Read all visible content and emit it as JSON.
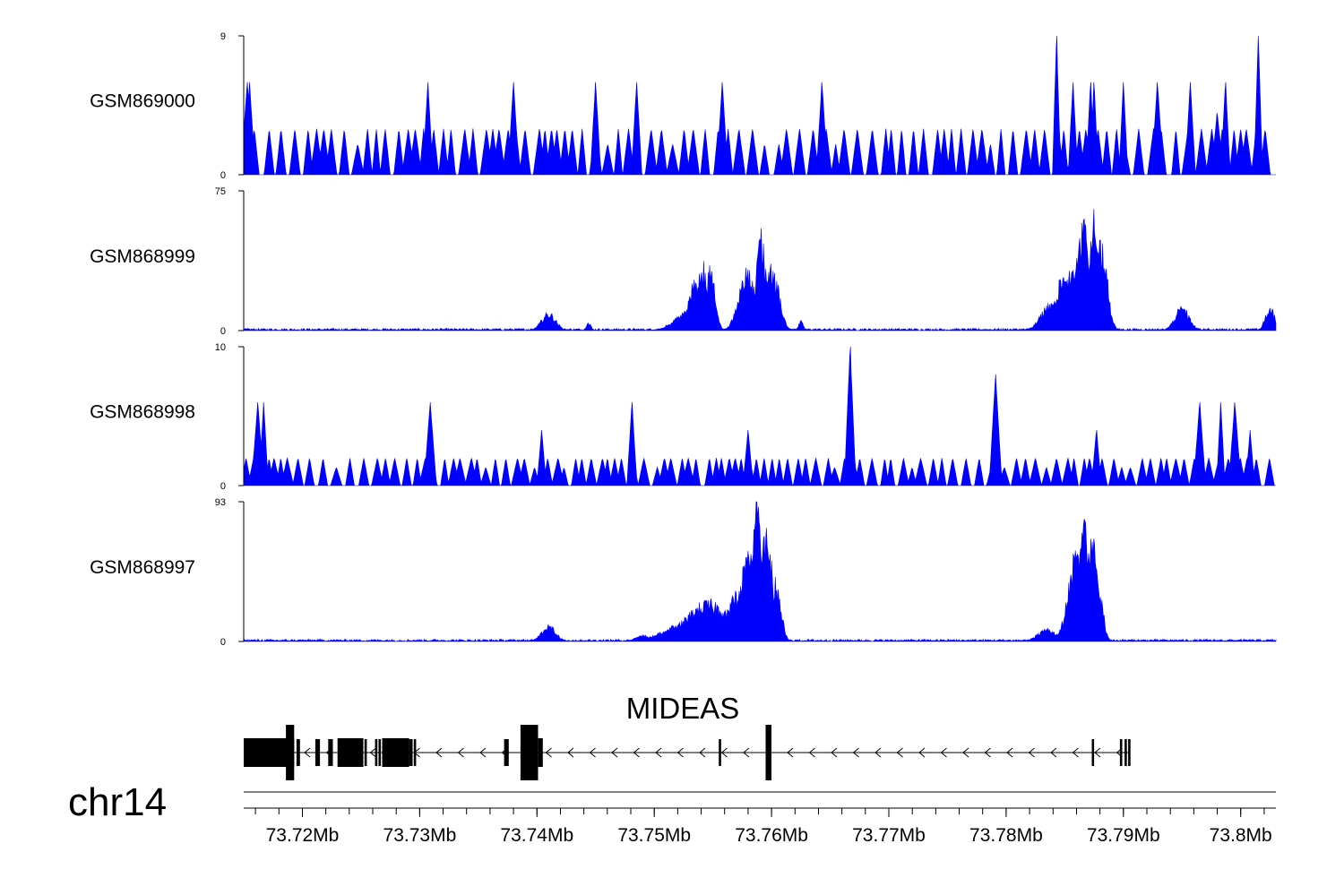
{
  "chart_data": {
    "type": "area",
    "title": "",
    "colors": {
      "signal": "#0000FF",
      "axis": "#000000",
      "gene": "#000000"
    },
    "xlim": [
      73.715,
      73.803
    ],
    "x_unit": "Mb",
    "x_ticks": [
      {
        "value": 73.72,
        "label": "73.72Mb"
      },
      {
        "value": 73.73,
        "label": "73.73Mb"
      },
      {
        "value": 73.74,
        "label": "73.74Mb"
      },
      {
        "value": 73.75,
        "label": "73.75Mb"
      },
      {
        "value": 73.76,
        "label": "73.76Mb"
      },
      {
        "value": 73.77,
        "label": "73.77Mb"
      },
      {
        "value": 73.78,
        "label": "73.78Mb"
      },
      {
        "value": 73.79,
        "label": "73.79Mb"
      },
      {
        "value": 73.8,
        "label": "73.8Mb"
      }
    ],
    "minor_tick_step": 0.002,
    "chromosome": "chr14",
    "tracks": [
      {
        "name": "GSM869000",
        "ymin_label": "0",
        "ymax_label": "9",
        "ylim": [
          0,
          9
        ],
        "style": "sparse",
        "base": 3,
        "spacing": 0.00075,
        "peaks": [
          [
            73.7153,
            6
          ],
          [
            73.7155,
            6
          ],
          [
            73.7307,
            6
          ],
          [
            73.738,
            6
          ],
          [
            73.745,
            6
          ],
          [
            73.7485,
            6
          ],
          [
            73.7558,
            6
          ],
          [
            73.7643,
            6
          ],
          [
            73.7857,
            6
          ],
          [
            73.7872,
            6
          ],
          [
            73.7875,
            6
          ],
          [
            73.79,
            6
          ],
          [
            73.7929,
            6
          ],
          [
            73.7957,
            6
          ],
          [
            73.7987,
            6
          ],
          [
            73.7843,
            9
          ],
          [
            73.8015,
            9
          ],
          [
            73.798,
            4
          ]
        ]
      },
      {
        "name": "GSM868999",
        "ymin_label": "0",
        "ymax_label": "75",
        "ylim": [
          0,
          75
        ],
        "style": "peaks",
        "noise": 1.2,
        "peaks": [
          [
            73.741,
            9,
            0.0006
          ],
          [
            73.7444,
            4,
            0.0002
          ],
          [
            73.753,
            10,
            0.0012
          ],
          [
            73.7536,
            28,
            0.0006
          ],
          [
            73.7541,
            34,
            0.0004
          ],
          [
            73.7548,
            32,
            0.0004
          ],
          [
            73.7579,
            30,
            0.0007
          ],
          [
            73.7591,
            48,
            0.0004
          ],
          [
            73.76,
            34,
            0.0006
          ],
          [
            73.7625,
            5,
            0.0002
          ],
          [
            73.7838,
            14,
            0.0008
          ],
          [
            73.7852,
            30,
            0.001
          ],
          [
            73.7862,
            45,
            0.0006
          ],
          [
            73.7867,
            70,
            0.0003
          ],
          [
            73.7875,
            58,
            0.0004
          ],
          [
            73.7881,
            46,
            0.0005
          ],
          [
            73.795,
            12,
            0.0006
          ],
          [
            73.8025,
            12,
            0.0004
          ]
        ]
      },
      {
        "name": "GSM868998",
        "ymin_label": "0",
        "ymax_label": "10",
        "ylim": [
          0,
          10
        ],
        "style": "sparse",
        "base": 2,
        "spacing": 0.0007,
        "peaks": [
          [
            73.7162,
            6
          ],
          [
            73.7167,
            6
          ],
          [
            73.7309,
            6
          ],
          [
            73.7404,
            4
          ],
          [
            73.7481,
            6
          ],
          [
            73.758,
            4
          ],
          [
            73.7667,
            10
          ],
          [
            73.7791,
            8
          ],
          [
            73.7877,
            4
          ],
          [
            73.7965,
            6
          ],
          [
            73.7983,
            6
          ],
          [
            73.7995,
            6
          ],
          [
            73.8008,
            4
          ]
        ]
      },
      {
        "name": "GSM868997",
        "ymin_label": "0",
        "ymax_label": "93",
        "ylim": [
          0,
          93
        ],
        "style": "peaks",
        "noise": 1.5,
        "peaks": [
          [
            73.741,
            10,
            0.0006
          ],
          [
            73.749,
            4,
            0.0006
          ],
          [
            73.752,
            10,
            0.0015
          ],
          [
            73.7547,
            25,
            0.002
          ],
          [
            73.757,
            30,
            0.0008
          ],
          [
            73.758,
            55,
            0.0007
          ],
          [
            73.7588,
            88,
            0.0004
          ],
          [
            73.7596,
            80,
            0.0004
          ],
          [
            73.7604,
            40,
            0.0004
          ],
          [
            73.7835,
            8,
            0.0008
          ],
          [
            73.786,
            55,
            0.0007
          ],
          [
            73.7867,
            75,
            0.0005
          ],
          [
            73.7873,
            65,
            0.0005
          ],
          [
            73.7878,
            40,
            0.0004
          ]
        ]
      }
    ],
    "gene": {
      "name": "MIDEAS",
      "strand": "-",
      "start": 73.715,
      "end": 73.7905,
      "exons": [
        [
          73.715,
          73.7193,
          "utr"
        ],
        [
          73.7186,
          73.7193,
          "tall"
        ],
        [
          73.7195,
          73.7198,
          "tall"
        ],
        [
          73.7211,
          73.7215,
          "tall"
        ],
        [
          73.7222,
          73.7226,
          "tall"
        ],
        [
          73.7224,
          73.7226,
          "tall"
        ],
        [
          73.723,
          73.7252,
          "utr"
        ],
        [
          73.7253,
          73.7255,
          "tall"
        ],
        [
          73.7262,
          73.7264,
          "tall"
        ],
        [
          73.7265,
          73.7267,
          "tall"
        ],
        [
          73.7268,
          73.7291,
          "utr"
        ],
        [
          73.7291,
          73.7294,
          "tall"
        ],
        [
          73.7295,
          73.7297,
          "tall"
        ],
        [
          73.7372,
          73.7376,
          "tall"
        ],
        [
          73.7386,
          73.7401,
          "tall"
        ],
        [
          73.7401,
          73.7405,
          "utr"
        ],
        [
          73.7555,
          73.7557,
          "tall"
        ],
        [
          73.7595,
          73.76,
          "tall"
        ],
        [
          73.7873,
          73.7875,
          "tall"
        ],
        [
          73.7897,
          73.7899,
          "tall"
        ],
        [
          73.7901,
          73.7903,
          "tall"
        ],
        [
          73.7904,
          73.7906,
          "tall"
        ]
      ]
    }
  }
}
